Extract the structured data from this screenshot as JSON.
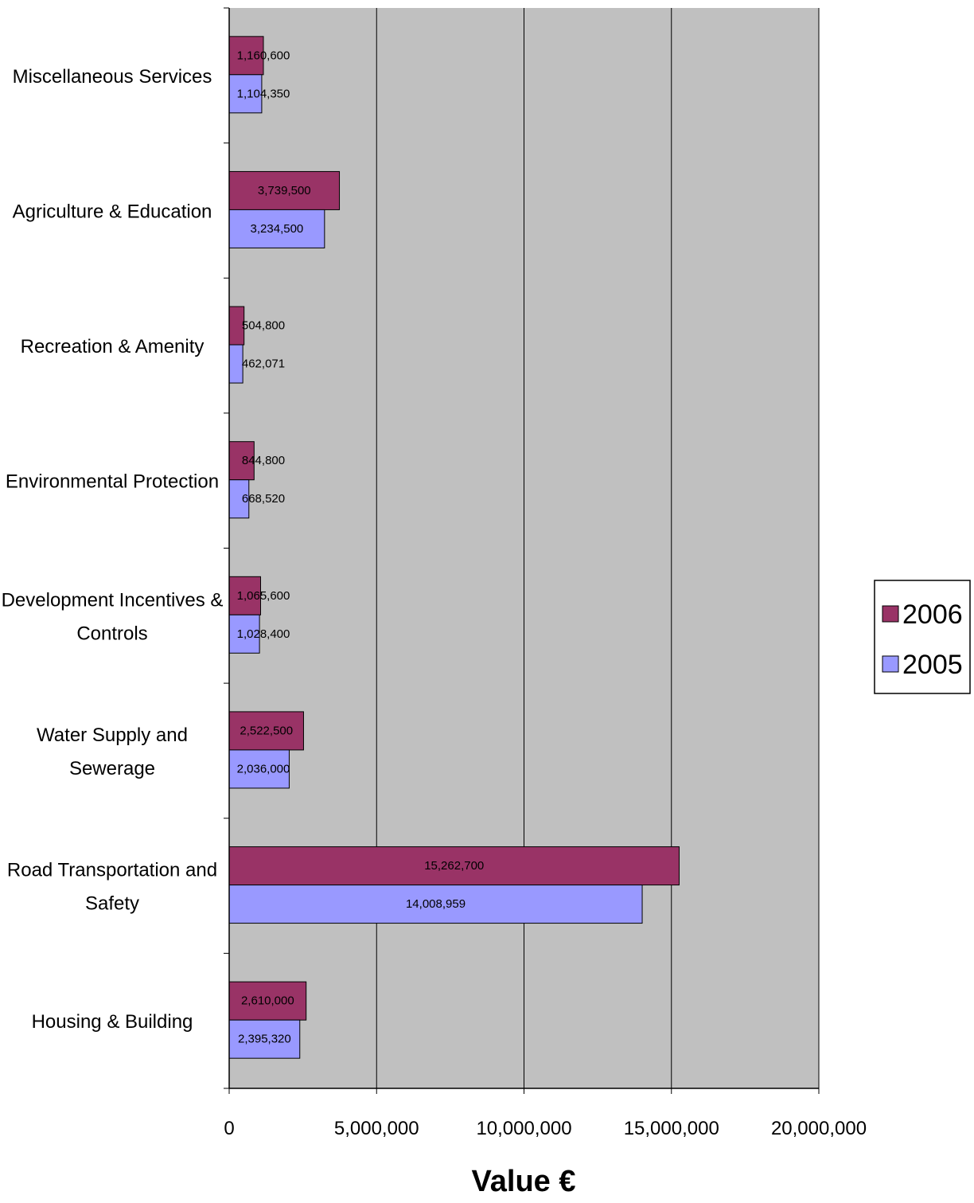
{
  "chart_data": {
    "type": "bar",
    "orientation": "horizontal",
    "categories": [
      [
        "Miscellaneous Services"
      ],
      [
        "Agriculture & Education"
      ],
      [
        "Recreation & Amenity"
      ],
      [
        "Environmental Protection"
      ],
      [
        "Development Incentives &",
        "Controls"
      ],
      [
        "Water Supply and",
        "Sewerage"
      ],
      [
        "Road Transportation and",
        "Safety"
      ],
      [
        "Housing & Building"
      ]
    ],
    "series": [
      {
        "name": "2006",
        "color": "#993366",
        "values": [
          1160600,
          3739500,
          504800,
          844800,
          1065600,
          2522500,
          15262700,
          2610000
        ],
        "labels": [
          "1,160,600",
          "3,739,500",
          "504,800",
          "844,800",
          "1,065,600",
          "2,522,500",
          "15,262,700",
          "2,610,000"
        ]
      },
      {
        "name": "2005",
        "color": "#9999ff",
        "values": [
          1104350,
          3234500,
          462071,
          668520,
          1028400,
          2036000,
          14008959,
          2395320
        ],
        "labels": [
          "1,104,350",
          "3,234,500",
          "462,071",
          "668,520",
          "1,028,400",
          "2,036,000",
          "14,008,959",
          "2,395,320"
        ]
      }
    ],
    "xlim": [
      0,
      20000000
    ],
    "xticks": [
      0,
      5000000,
      10000000,
      15000000,
      20000000
    ],
    "xtick_labels": [
      "0",
      "5,000,000",
      "10,000,000",
      "15,000,000",
      "20,000,000"
    ],
    "xlabel": "Value €",
    "ylabel": "",
    "title": "",
    "plot_background": "#c0c0c0",
    "grid": "vertical",
    "legend": {
      "position": "right",
      "entries": [
        "2006",
        "2005"
      ]
    }
  }
}
